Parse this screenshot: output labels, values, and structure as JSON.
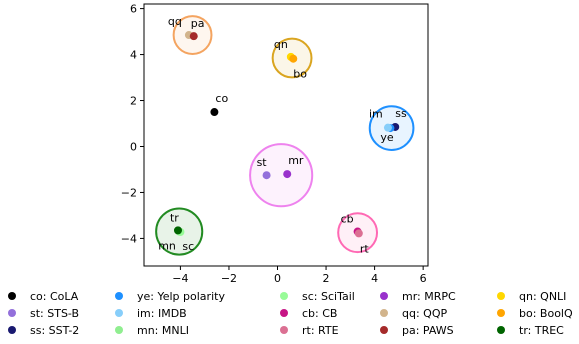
{
  "chart_data": {
    "type": "scatter",
    "title": "",
    "xlabel": "",
    "ylabel": "",
    "xlim": [
      -5.5,
      6.2
    ],
    "ylim": [
      -5.2,
      6.2
    ],
    "xticks": [
      -4,
      -2,
      0,
      2,
      4,
      6
    ],
    "yticks": [
      -4,
      -2,
      0,
      2,
      4,
      6
    ],
    "xtick_labels": [
      "−4",
      "−2",
      "0",
      "2",
      "4",
      "6"
    ],
    "ytick_labels": [
      "−4",
      "−2",
      "0",
      "2",
      "4",
      "6"
    ],
    "grid": false,
    "legend_position": "bottom",
    "points": [
      {
        "code": "co",
        "legend": "co: CoLA",
        "x": -2.6,
        "y": 1.5,
        "color": "#000000"
      },
      {
        "code": "st",
        "legend": "st: STS-B",
        "x": -0.45,
        "y": -1.25,
        "color": "#9370db"
      },
      {
        "code": "ss",
        "legend": "ss: SST-2",
        "x": 4.85,
        "y": 0.85,
        "color": "#191970"
      },
      {
        "code": "ye",
        "legend": "ye: Yelp polarity",
        "x": 4.65,
        "y": 0.8,
        "color": "#1e90ff"
      },
      {
        "code": "im",
        "legend": "im: IMDB",
        "x": 4.55,
        "y": 0.82,
        "color": "#87cefa"
      },
      {
        "code": "mn",
        "legend": "mn: MNLI",
        "x": -4.05,
        "y": -3.7,
        "color": "#90ee90"
      },
      {
        "code": "sc",
        "legend": "sc: SciTail",
        "x": -4.0,
        "y": -3.72,
        "color": "#98fb98"
      },
      {
        "code": "cb",
        "legend": "cb: CB",
        "x": 3.3,
        "y": -3.7,
        "color": "#c71585"
      },
      {
        "code": "rt",
        "legend": "rt: RTE",
        "x": 3.35,
        "y": -3.78,
        "color": "#db7093"
      },
      {
        "code": "mr",
        "legend": "mr: MRPC",
        "x": 0.4,
        "y": -1.2,
        "color": "#9932cc"
      },
      {
        "code": "qq",
        "legend": "qq: QQP",
        "x": -3.65,
        "y": 4.85,
        "color": "#d2b48c"
      },
      {
        "code": "pa",
        "legend": "pa: PAWS",
        "x": -3.45,
        "y": 4.8,
        "color": "#a52a2a"
      },
      {
        "code": "qn",
        "legend": "qn: QNLI",
        "x": 0.55,
        "y": 3.9,
        "color": "#ffd700"
      },
      {
        "code": "bo",
        "legend": "bo: BoolQ",
        "x": 0.65,
        "y": 3.82,
        "color": "#ffa500"
      },
      {
        "code": "tr",
        "legend": "tr: TREC",
        "x": -4.1,
        "y": -3.65,
        "color": "#006400"
      }
    ],
    "clusters": [
      {
        "x": -3.5,
        "y": 4.85,
        "r": 0.78,
        "color": "#f4a460"
      },
      {
        "x": 0.6,
        "y": 3.85,
        "r": 0.8,
        "color": "#daa520"
      },
      {
        "x": 4.7,
        "y": 0.8,
        "r": 0.9,
        "color": "#1e90ff"
      },
      {
        "x": 0.15,
        "y": -1.25,
        "r": 1.28,
        "color": "#ee82ee"
      },
      {
        "x": 3.3,
        "y": -3.75,
        "r": 0.8,
        "color": "#ff69b4"
      },
      {
        "x": -4.05,
        "y": -3.7,
        "r": 0.95,
        "color": "#228b22"
      }
    ]
  }
}
